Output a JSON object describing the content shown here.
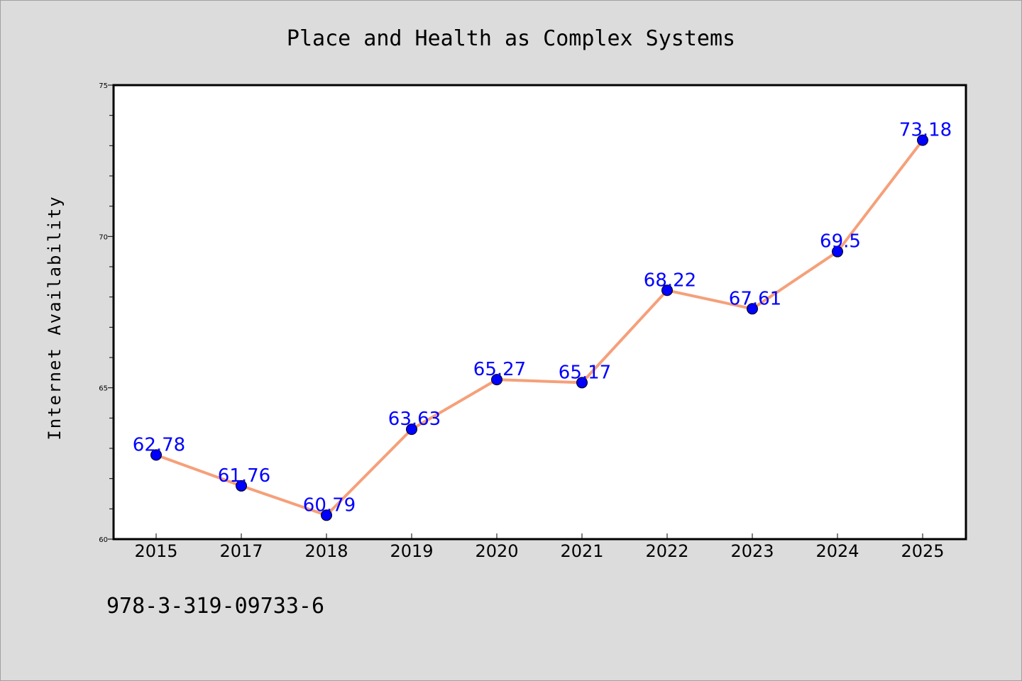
{
  "chart_data": {
    "type": "line",
    "title": "Place and Health as Complex Systems",
    "xlabel": "",
    "ylabel": "Internet Availability",
    "categories": [
      "2015",
      "2017",
      "2018",
      "2019",
      "2020",
      "2021",
      "2022",
      "2023",
      "2024",
      "2025"
    ],
    "series": [
      {
        "values": [
          62.78,
          61.76,
          60.79,
          63.63,
          65.27,
          65.17,
          68.22,
          67.61,
          69.5,
          73.18
        ],
        "labels": [
          "62.78",
          "61.76",
          "60.79",
          "63.63",
          "65.27",
          "65.17",
          "68.22",
          "67.61",
          "69.5",
          "73.18"
        ],
        "line_color": "#f5a07a",
        "marker_color": "#0000ff"
      }
    ],
    "ylim": [
      60,
      75
    ],
    "yticks": [
      "60",
      "65",
      "70",
      "75"
    ],
    "grid": false,
    "legend": "none",
    "background_color": "#dcdcdc",
    "plot_color": "#ffffff"
  },
  "footer": {
    "text": "978-3-319-09733-6"
  }
}
